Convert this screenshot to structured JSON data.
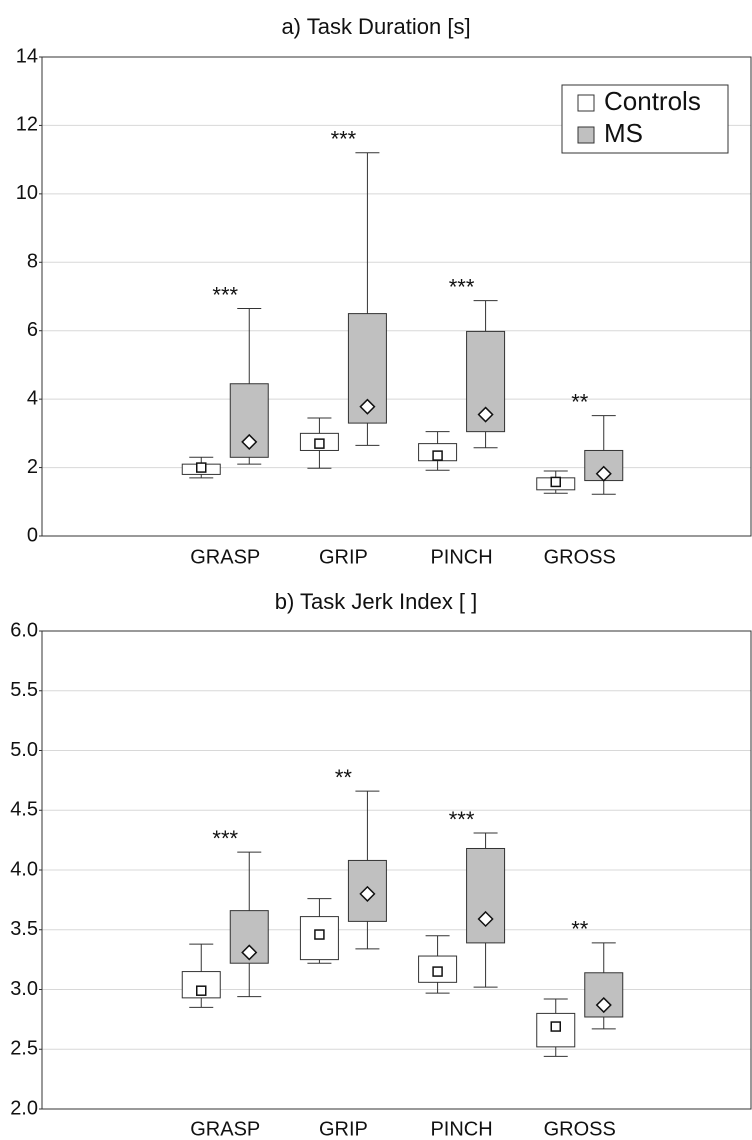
{
  "chart_data": [
    {
      "type": "box",
      "title": "a) Task Duration [s]",
      "categories": [
        "GRASP",
        "GRIP",
        "PINCH",
        "GROSS"
      ],
      "series": [
        {
          "name": "Controls",
          "color": "#ffffff",
          "marker": "square",
          "whisker_low": [
            1.7,
            1.98,
            1.92,
            1.25
          ],
          "q1": [
            1.8,
            2.5,
            2.2,
            1.35
          ],
          "q3": [
            2.1,
            3.0,
            2.7,
            1.7
          ],
          "whisker_high": [
            2.3,
            3.45,
            3.05,
            1.9
          ],
          "mean": [
            2.0,
            2.7,
            2.35,
            1.58
          ]
        },
        {
          "name": "MS",
          "color": "#c0c0c0",
          "marker": "diamond",
          "whisker_low": [
            2.1,
            2.65,
            2.58,
            1.22
          ],
          "q1": [
            2.3,
            3.3,
            3.05,
            1.62
          ],
          "q3": [
            4.45,
            6.5,
            5.98,
            2.5
          ],
          "whisker_high": [
            6.65,
            11.2,
            6.88,
            3.52
          ],
          "mean": [
            2.75,
            3.78,
            3.55,
            1.82
          ]
        }
      ],
      "annotations": [
        "***",
        "***",
        "***",
        "**"
      ],
      "ylim": [
        0,
        14
      ],
      "yticks": [
        0,
        2,
        4,
        6,
        8,
        10,
        12,
        14
      ],
      "grid": true,
      "legend": "upper right"
    },
    {
      "type": "box",
      "title": "b) Task Jerk Index [ ]",
      "categories": [
        "GRASP",
        "GRIP",
        "PINCH",
        "GROSS"
      ],
      "series": [
        {
          "color": "#ffffff",
          "marker": "square",
          "whisker_low": [
            2.85,
            3.22,
            2.97,
            2.44
          ],
          "q1": [
            2.93,
            3.25,
            3.06,
            2.52
          ],
          "q3": [
            3.15,
            3.61,
            3.28,
            2.8
          ],
          "whisker_high": [
            3.38,
            3.76,
            3.45,
            2.92
          ],
          "mean": [
            2.99,
            3.46,
            3.15,
            2.69
          ]
        },
        {
          "color": "#c0c0c0",
          "marker": "diamond",
          "whisker_low": [
            2.94,
            3.34,
            3.02,
            2.67
          ],
          "q1": [
            3.22,
            3.57,
            3.39,
            2.77
          ],
          "q3": [
            3.66,
            4.08,
            4.18,
            3.14
          ],
          "whisker_high": [
            4.15,
            4.66,
            4.31,
            3.39
          ],
          "mean": [
            3.31,
            3.8,
            3.59,
            2.87
          ]
        }
      ],
      "annotations": [
        "***",
        "**",
        "***",
        "**"
      ],
      "ylim": [
        2,
        6
      ],
      "yticks": [
        {
          "value": 2,
          "label": "2.0"
        },
        {
          "value": 2.5,
          "label": "2.5"
        },
        {
          "value": 3,
          "label": "3.0"
        },
        {
          "value": 3.5,
          "label": "3.5"
        },
        {
          "value": 4,
          "label": "4.0"
        },
        {
          "value": 4.5,
          "label": "4.5"
        },
        {
          "value": 5,
          "label": "5.0"
        },
        {
          "value": 5.5,
          "label": "5.5"
        },
        {
          "value": 6,
          "label": "6.0"
        }
      ],
      "grid": true
    }
  ]
}
